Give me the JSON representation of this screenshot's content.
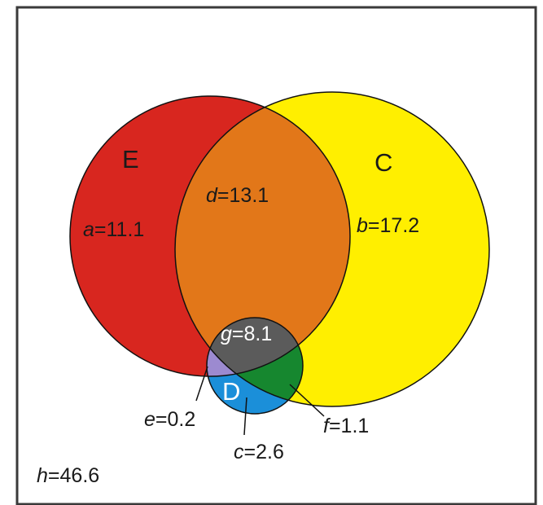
{
  "sets": {
    "E": {
      "label": "E",
      "color": "#d8261f"
    },
    "C": {
      "label": "C",
      "color": "#ffef00"
    },
    "D": {
      "label": "D",
      "color": "#1b8fd9"
    }
  },
  "regions": {
    "a": {
      "var": "a",
      "value": "=11.1"
    },
    "b": {
      "var": "b",
      "value": "=17.2"
    },
    "c": {
      "var": "c",
      "value": "=2.6"
    },
    "d": {
      "var": "d",
      "value": "=13.1"
    },
    "e": {
      "var": "e",
      "value": "=0.2"
    },
    "f": {
      "var": "f",
      "value": "=1.1"
    },
    "g": {
      "var": "g",
      "value": "=8.1"
    },
    "h": {
      "var": "h",
      "value": "=46.6"
    }
  },
  "colors": {
    "E_and_C": "#e27719",
    "C_and_D": "#16872f",
    "E_and_D": "#9c8ad0",
    "all_three": "#5b5b5b",
    "frame": "#3a3a3a"
  }
}
